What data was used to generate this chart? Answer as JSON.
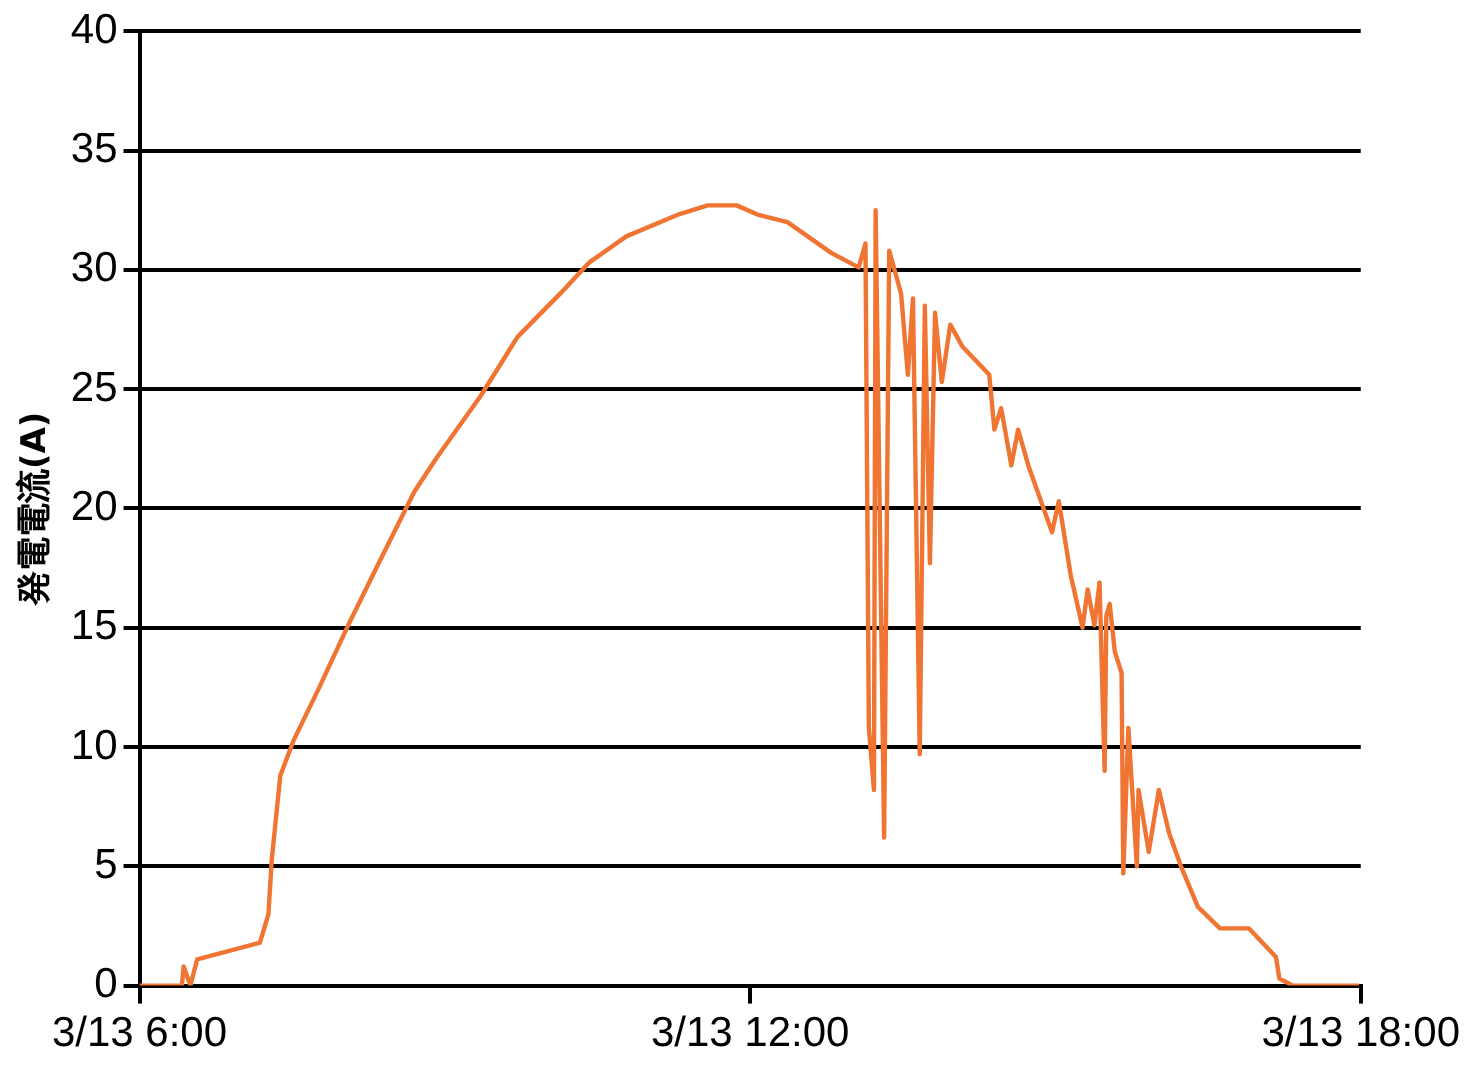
{
  "chart_data": {
    "type": "line",
    "ylabel": "発電電流(A)",
    "xlim": [
      "--03-13T06:00",
      "--03-13T18:00"
    ],
    "xticks": [
      {
        "value": "--03-13T06:00",
        "label": "3/13 6:00"
      },
      {
        "value": "--03-13T12:00",
        "label": "3/13 12:00"
      },
      {
        "value": "--03-13T18:00",
        "label": "3/13 18:00"
      }
    ],
    "ylim": [
      0,
      40
    ],
    "yticks": [
      0,
      5,
      10,
      15,
      20,
      25,
      30,
      35,
      40
    ],
    "grid": "y",
    "legend": false,
    "marker": "none",
    "line_style": "solid",
    "series": [
      {
        "color": "#f07432",
        "x": [
          "--03-13T06:00",
          "--03-13T06:25",
          "--03-13T06:26",
          "--03-13T06:30",
          "--03-13T06:34",
          "--03-13T07:11",
          "--03-13T07:16",
          "--03-13T07:18",
          "--03-13T07:23",
          "--03-13T07:31",
          "--03-13T07:46",
          "--03-13T08:03",
          "--03-13T08:21",
          "--03-13T08:42",
          "--03-13T08:55",
          "--03-13T09:21",
          "--03-13T09:43",
          "--03-13T10:08",
          "--03-13T10:25",
          "--03-13T10:47",
          "--03-13T11:17",
          "--03-13T11:35",
          "--03-13T11:52",
          "--03-13T12:05",
          "--03-13T12:22",
          "--03-13T12:48",
          "--03-13T13:04",
          "--03-13T13:08",
          "--03-13T13:10",
          "--03-13T13:13",
          "--03-13T13:14",
          "--03-13T13:19",
          "--03-13T13:22",
          "--03-13T13:29",
          "--03-13T13:33",
          "--03-13T13:36",
          "--03-13T13:40",
          "--03-13T13:43",
          "--03-13T13:46",
          "--03-13T13:49",
          "--03-13T13:53",
          "--03-13T13:58",
          "--03-13T14:05",
          "--03-13T14:21",
          "--03-13T14:24",
          "--03-13T14:28",
          "--03-13T14:34",
          "--03-13T14:38",
          "--03-13T14:44",
          "--03-13T14:58",
          "--03-13T15:02",
          "--03-13T15:09",
          "--03-13T15:16",
          "--03-13T15:19",
          "--03-13T15:23",
          "--03-13T15:26",
          "--03-13T15:29",
          "--03-13T15:30",
          "--03-13T15:32",
          "--03-13T15:35",
          "--03-13T15:39",
          "--03-13T15:40",
          "--03-13T15:43",
          "--03-13T15:48",
          "--03-13T15:49",
          "--03-13T15:55",
          "--03-13T16:01",
          "--03-13T16:07",
          "--03-13T16:14",
          "--03-13T16:24",
          "--03-13T16:37",
          "--03-13T16:54",
          "--03-13T17:10",
          "--03-13T17:12",
          "--03-13T17:20",
          "--03-13T17:59"
        ],
        "values": [
          0,
          0,
          0.8,
          0,
          1.1,
          1.8,
          3,
          5.3,
          8.8,
          10.3,
          12.5,
          15.1,
          17.7,
          20.7,
          22.1,
          24.7,
          27.2,
          29,
          30.3,
          31.4,
          32.3,
          32.7,
          32.7,
          32.3,
          32,
          30.7,
          30.1,
          31.1,
          10.8,
          8.2,
          32.5,
          6.2,
          30.8,
          29,
          25.6,
          28.8,
          9.7,
          28.5,
          17.7,
          28.2,
          25.3,
          27.7,
          26.8,
          25.6,
          23.3,
          24.2,
          21.8,
          23.3,
          21.8,
          19,
          20.3,
          17.2,
          15,
          16.6,
          15.1,
          16.9,
          9,
          15.5,
          16,
          14,
          13.1,
          4.7,
          10.8,
          5,
          8.2,
          5.6,
          8.2,
          6.4,
          5,
          3.3,
          2.4,
          2.4,
          1.2,
          0.3,
          0,
          0
        ]
      }
    ]
  }
}
